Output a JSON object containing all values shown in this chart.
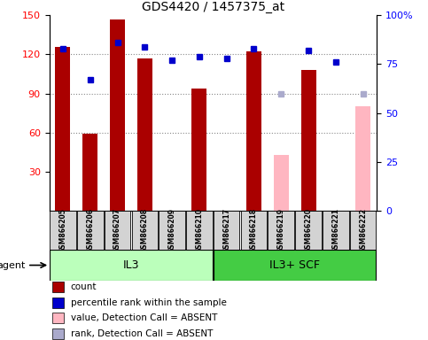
{
  "title": "GDS4420 / 1457375_at",
  "samples": [
    "GSM866205",
    "GSM866206",
    "GSM866207",
    "GSM866208",
    "GSM866209",
    "GSM866210",
    "GSM866217",
    "GSM866218",
    "GSM866219",
    "GSM866220",
    "GSM866221",
    "GSM866222"
  ],
  "count": [
    126,
    59,
    147,
    117,
    null,
    94,
    null,
    122,
    null,
    108,
    null,
    null
  ],
  "rank": [
    83,
    67,
    86,
    84,
    77,
    79,
    78,
    83,
    null,
    82,
    76,
    null
  ],
  "absent_value": [
    null,
    null,
    null,
    null,
    null,
    null,
    null,
    null,
    43,
    null,
    null,
    80
  ],
  "absent_rank": [
    null,
    null,
    null,
    null,
    null,
    null,
    null,
    null,
    60,
    null,
    null,
    60
  ],
  "bar_color": "#AA0000",
  "rank_color": "#0000CC",
  "absent_val_color": "#FFB6C1",
  "absent_rank_color": "#AAAACC",
  "il3_color": "#BBFFBB",
  "il3scf_color": "#44CC44",
  "ylim_left": [
    0,
    150
  ],
  "ylim_right": [
    0,
    100
  ],
  "yticks_left": [
    30,
    60,
    90,
    120,
    150
  ],
  "yticks_right": [
    0,
    25,
    50,
    75,
    100
  ],
  "ytick_right_labels": [
    "0",
    "25",
    "50",
    "75",
    "100%"
  ]
}
